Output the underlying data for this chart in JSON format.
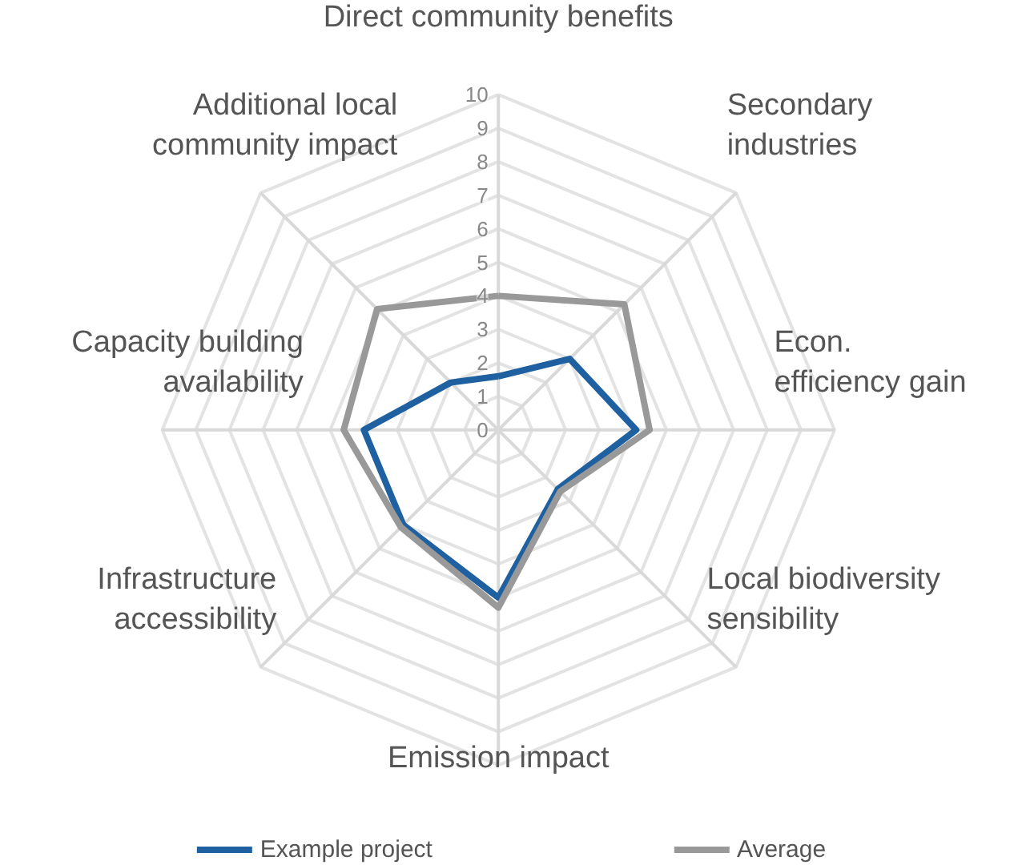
{
  "chart_data": {
    "type": "radar",
    "categories": [
      "Direct community benefits",
      "Secondary industries",
      "Econ. efficiency gain",
      "Local biodiversity sensibility",
      "Emission impact",
      "Infrastructure accessibility",
      "Capacity building availability",
      "Additional local community impact"
    ],
    "series": [
      {
        "name": "Example project",
        "color": "#1f60a0",
        "values": [
          1.6,
          3.0,
          4.1,
          2.5,
          5.0,
          4.0,
          4.0,
          2.0
        ]
      },
      {
        "name": "Average",
        "color": "#999999",
        "values": [
          4.0,
          5.3,
          4.5,
          2.6,
          5.3,
          4.1,
          4.6,
          5.1
        ]
      }
    ],
    "ylim": [
      0,
      10
    ],
    "yticks": [
      0,
      1,
      2,
      3,
      4,
      5,
      6,
      7,
      8,
      9,
      10
    ],
    "grid": true,
    "legend": "bottom"
  }
}
